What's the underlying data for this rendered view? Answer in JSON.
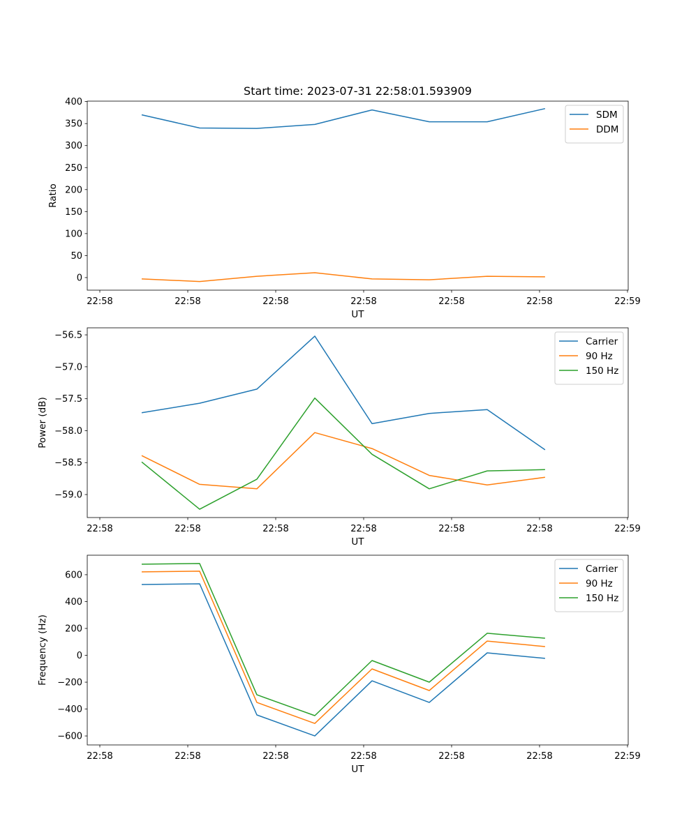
{
  "title": "Start time: 2023-07-31 22:58:01.593909",
  "colors": {
    "c0": "#1f77b4",
    "c1": "#ff7f0e",
    "c2": "#2ca02c"
  },
  "chart_data": [
    {
      "type": "line",
      "xlabel": "UT",
      "ylabel": "Ratio",
      "x_units": "seconds after 22:58:00",
      "xlim": [
        -1.43,
        60.08
      ],
      "xticks": [
        0,
        10,
        20,
        30,
        40,
        50,
        60
      ],
      "xtick_labels": [
        "22:58",
        "22:58",
        "22:58",
        "22:58",
        "22:58",
        "22:58",
        "22:59"
      ],
      "ylim": [
        -28.6,
        401
      ],
      "yticks": [
        0,
        50,
        100,
        150,
        200,
        250,
        300,
        350,
        400
      ],
      "ytick_labels": [
        "0",
        "50",
        "100",
        "150",
        "200",
        "250",
        "300",
        "350",
        "400"
      ],
      "legend": "top-right",
      "grid": false,
      "x": [
        4.76,
        11.35,
        17.86,
        24.44,
        30.95,
        37.46,
        44.05,
        50.63
      ],
      "series": [
        {
          "name": "SDM",
          "color": "#1f77b4",
          "values": [
            370,
            340,
            339,
            348,
            381,
            354,
            354,
            384
          ]
        },
        {
          "name": "DDM",
          "color": "#ff7f0e",
          "values": [
            -3,
            -9,
            3,
            11,
            -3,
            -5,
            3,
            1.6
          ]
        }
      ]
    },
    {
      "type": "line",
      "xlabel": "UT",
      "ylabel": "Power (dB)",
      "x_units": "seconds after 22:58:00",
      "xlim": [
        -1.43,
        60.08
      ],
      "xticks": [
        0,
        10,
        20,
        30,
        40,
        50,
        60
      ],
      "xtick_labels": [
        "22:58",
        "22:58",
        "22:58",
        "22:58",
        "22:58",
        "22:58",
        "22:59"
      ],
      "ylim": [
        -59.36,
        -56.39
      ],
      "yticks": [
        -59.0,
        -58.5,
        -58.0,
        -57.5,
        -57.0,
        -56.5
      ],
      "ytick_labels": [
        "−59.0",
        "−58.5",
        "−58.0",
        "−57.5",
        "−57.0",
        "−56.5"
      ],
      "legend": "top-right",
      "grid": false,
      "x": [
        4.76,
        11.35,
        17.86,
        24.44,
        30.95,
        37.46,
        44.05,
        50.63
      ],
      "series": [
        {
          "name": "Carrier",
          "color": "#1f77b4",
          "values": [
            -57.72,
            -57.57,
            -57.35,
            -56.52,
            -57.89,
            -57.73,
            -57.67,
            -58.3
          ]
        },
        {
          "name": "90 Hz",
          "color": "#ff7f0e",
          "values": [
            -58.39,
            -58.84,
            -58.91,
            -58.03,
            -58.28,
            -58.7,
            -58.85,
            -58.73
          ]
        },
        {
          "name": "150 Hz",
          "color": "#2ca02c",
          "values": [
            -58.49,
            -59.23,
            -58.76,
            -57.49,
            -58.37,
            -58.91,
            -58.63,
            -58.61
          ]
        }
      ]
    },
    {
      "type": "line",
      "xlabel": "UT",
      "ylabel": "Frequency (Hz)",
      "x_units": "seconds after 22:58:00",
      "xlim": [
        -1.43,
        60.08
      ],
      "xticks": [
        0,
        10,
        20,
        30,
        40,
        50,
        60
      ],
      "xtick_labels": [
        "22:58",
        "22:58",
        "22:58",
        "22:58",
        "22:58",
        "22:58",
        "22:59"
      ],
      "ylim": [
        -667,
        745
      ],
      "yticks": [
        -600,
        -400,
        -200,
        0,
        200,
        400,
        600
      ],
      "ytick_labels": [
        "−600",
        "−400",
        "−200",
        "0",
        "200",
        "400",
        "600"
      ],
      "legend": "top-right",
      "grid": false,
      "x": [
        4.76,
        11.35,
        17.86,
        24.44,
        30.95,
        37.46,
        44.05,
        50.63
      ],
      "series": [
        {
          "name": "Carrier",
          "color": "#1f77b4",
          "values": [
            527,
            532,
            -444,
            -600,
            -190,
            -351,
            18,
            -23
          ]
        },
        {
          "name": "90 Hz",
          "color": "#ff7f0e",
          "values": [
            621,
            626,
            -351,
            -507,
            -101,
            -262,
            106,
            65
          ]
        },
        {
          "name": "150 Hz",
          "color": "#2ca02c",
          "values": [
            678,
            683,
            -294,
            -449,
            -39,
            -200,
            164,
            127
          ]
        }
      ]
    }
  ]
}
